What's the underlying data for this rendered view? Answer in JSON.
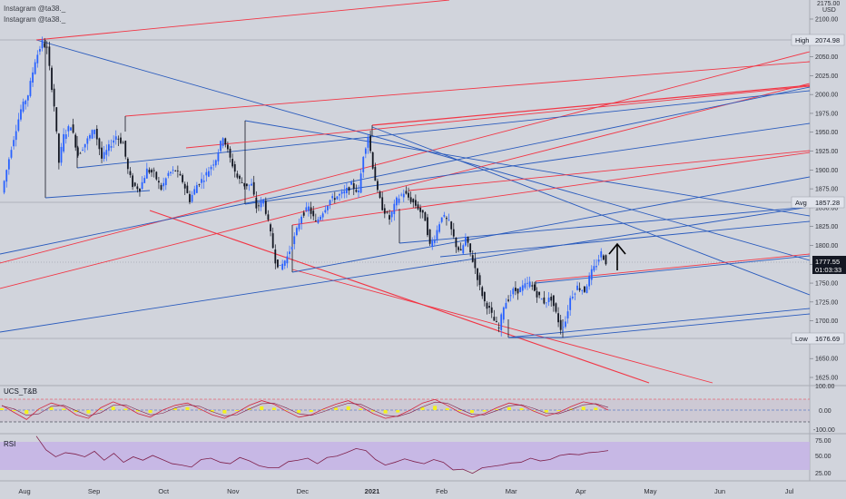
{
  "watermark": [
    "Instagram @ta38._",
    "Instagram @ta38._"
  ],
  "currency": "USD",
  "axis_top_label": "2175.00",
  "price_axis": {
    "ticks": [
      "2100.00",
      "2075.00",
      "2050.00",
      "2025.00",
      "2000.00",
      "1975.00",
      "1950.00",
      "1925.00",
      "1900.00",
      "1875.00",
      "1850.00",
      "1825.00",
      "1800.00",
      "1775.00",
      "1750.00",
      "1725.00",
      "1700.00",
      "1675.00",
      "1650.00",
      "1625.00"
    ]
  },
  "badges": {
    "high": {
      "label": "High",
      "value": "2074.98"
    },
    "avg": {
      "label": "Avg",
      "value": "1857.28"
    },
    "low": {
      "label": "Low",
      "value": "1676.69"
    },
    "last": {
      "value": "1777.55",
      "countdown": "01:03:33"
    }
  },
  "time_axis": [
    "Aug",
    "Sep",
    "Oct",
    "Nov",
    "Dec",
    "2021",
    "Feb",
    "Mar",
    "Apr",
    "May",
    "Jun",
    "Jul"
  ],
  "indicators": {
    "ucs": {
      "label": "UCS_T&B",
      "ticks": [
        "100.00",
        "0.00",
        "-100.00"
      ]
    },
    "rsi": {
      "label": "RSI",
      "ticks": [
        "75.00",
        "50.00",
        "25.00"
      ]
    }
  },
  "colors": {
    "background": "#d1d4dc",
    "bull": "#2962ff",
    "bear": "#131722",
    "fork_red": "#f23645",
    "fork_blue": "#2a5bbd",
    "rsi_band": "#c5b3e6",
    "rsi_line": "#7e1f4a",
    "ucs_fill": "#f3f21b"
  },
  "chart_data": {
    "type": "candlestick",
    "symbol": "XAUUSD",
    "ylim": [
      1610,
      2150
    ],
    "high": 2074.98,
    "low": 1676.69,
    "avg": 1857.28,
    "last": 1777.55,
    "anchors": [
      [
        0,
        1870
      ],
      [
        4,
        1930
      ],
      [
        8,
        1980
      ],
      [
        11,
        2000
      ],
      [
        14,
        2045
      ],
      [
        17,
        2070
      ],
      [
        19,
        2060
      ],
      [
        22,
        1985
      ],
      [
        24,
        1910
      ],
      [
        26,
        1945
      ],
      [
        29,
        1960
      ],
      [
        32,
        1920
      ],
      [
        35,
        1935
      ],
      [
        39,
        1955
      ],
      [
        42,
        1915
      ],
      [
        45,
        1930
      ],
      [
        48,
        1945
      ],
      [
        51,
        1935
      ],
      [
        53,
        1900
      ],
      [
        55,
        1880
      ],
      [
        58,
        1875
      ],
      [
        61,
        1900
      ],
      [
        64,
        1895
      ],
      [
        67,
        1875
      ],
      [
        70,
        1895
      ],
      [
        73,
        1900
      ],
      [
        76,
        1885
      ],
      [
        79,
        1860
      ],
      [
        82,
        1880
      ],
      [
        85,
        1890
      ],
      [
        87,
        1900
      ],
      [
        90,
        1915
      ],
      [
        93,
        1945
      ],
      [
        96,
        1915
      ],
      [
        99,
        1890
      ],
      [
        102,
        1880
      ],
      [
        105,
        1880
      ],
      [
        107,
        1850
      ],
      [
        110,
        1860
      ],
      [
        113,
        1815
      ],
      [
        115,
        1780
      ],
      [
        117,
        1770
      ],
      [
        120,
        1785
      ],
      [
        123,
        1810
      ],
      [
        126,
        1840
      ],
      [
        129,
        1850
      ],
      [
        132,
        1830
      ],
      [
        135,
        1845
      ],
      [
        138,
        1860
      ],
      [
        141,
        1865
      ],
      [
        144,
        1870
      ],
      [
        147,
        1880
      ],
      [
        150,
        1870
      ],
      [
        152,
        1920
      ],
      [
        154,
        1945
      ],
      [
        156,
        1905
      ],
      [
        158,
        1870
      ],
      [
        160,
        1850
      ],
      [
        163,
        1835
      ],
      [
        166,
        1860
      ],
      [
        169,
        1870
      ],
      [
        172,
        1860
      ],
      [
        175,
        1850
      ],
      [
        178,
        1835
      ],
      [
        180,
        1800
      ],
      [
        182,
        1810
      ],
      [
        185,
        1840
      ],
      [
        188,
        1830
      ],
      [
        191,
        1800
      ],
      [
        193,
        1790
      ],
      [
        195,
        1810
      ],
      [
        197,
        1790
      ],
      [
        199,
        1770
      ],
      [
        201,
        1745
      ],
      [
        203,
        1725
      ],
      [
        205,
        1715
      ],
      [
        207,
        1700
      ],
      [
        209,
        1690
      ],
      [
        211,
        1720
      ],
      [
        213,
        1730
      ],
      [
        215,
        1740
      ],
      [
        217,
        1740
      ],
      [
        219,
        1745
      ],
      [
        222,
        1750
      ],
      [
        225,
        1735
      ],
      [
        228,
        1725
      ],
      [
        231,
        1730
      ],
      [
        233,
        1710
      ],
      [
        235,
        1690
      ],
      [
        237,
        1700
      ],
      [
        239,
        1730
      ],
      [
        242,
        1745
      ],
      [
        245,
        1740
      ],
      [
        248,
        1765
      ],
      [
        250,
        1775
      ],
      [
        252,
        1790
      ],
      [
        254,
        1778
      ]
    ],
    "ucs_series": [
      40,
      -20,
      -80,
      10,
      60,
      30,
      -40,
      -70,
      20,
      70,
      30,
      -30,
      -60,
      0,
      40,
      60,
      10,
      -40,
      -70,
      -20,
      40,
      80,
      50,
      -10,
      -60,
      -40,
      10,
      50,
      80,
      30,
      -30,
      -70,
      -50,
      0,
      60,
      90,
      40,
      -20,
      -60,
      -30,
      20,
      60,
      40,
      -10,
      -50,
      -20,
      30,
      70,
      50,
      0
    ],
    "rsi_series": [
      82,
      62,
      52,
      58,
      56,
      52,
      60,
      47,
      57,
      44,
      52,
      47,
      54,
      48,
      42,
      40,
      37,
      48,
      50,
      44,
      42,
      51,
      46,
      39,
      36,
      36,
      45,
      47,
      50,
      42,
      51,
      53,
      58,
      64,
      61,
      48,
      40,
      44,
      49,
      45,
      42,
      48,
      44,
      33,
      34,
      28,
      36,
      38,
      40,
      43,
      44,
      50,
      46,
      48,
      54,
      56,
      55,
      58,
      59,
      61
    ]
  }
}
